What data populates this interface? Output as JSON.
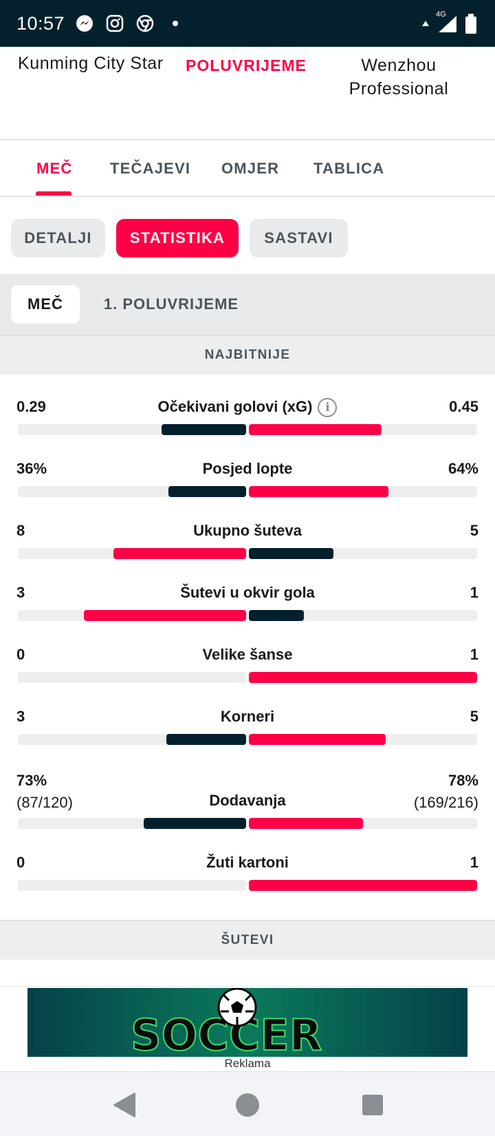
{
  "status_bar": {
    "time": "10:57",
    "network": "4G"
  },
  "match": {
    "home_team": "Kunming City Star",
    "status": "POLUVRIJEME",
    "away_team": "Wenzhou Professional"
  },
  "main_tabs": [
    {
      "label": "MEČ",
      "active": true
    },
    {
      "label": "TEČAJEVI"
    },
    {
      "label": "OMJER"
    },
    {
      "label": "TABLICA"
    }
  ],
  "sub_tabs": [
    {
      "label": "DETALJI"
    },
    {
      "label": "STATISTIKA",
      "active": true
    },
    {
      "label": "SASTAVI"
    }
  ],
  "period_tabs": [
    {
      "label": "MEČ",
      "active": true
    },
    {
      "label": "1. POLUVRIJEME"
    }
  ],
  "sections": {
    "highlights": "NAJBITNIJE",
    "shots": "ŠUTEVI"
  },
  "stats": [
    {
      "name": "Očekivani golovi (xG)",
      "home": "0.29",
      "away": "0.45",
      "home_ratio": 0.37,
      "away_ratio": 0.58,
      "home_color": "dark",
      "away_color": "red"
    },
    {
      "name": "Posjed lopte",
      "home": "36%",
      "away": "64%",
      "home_ratio": 0.34,
      "away_ratio": 0.61,
      "home_color": "dark",
      "away_color": "red"
    },
    {
      "name": "Ukupno šuteva",
      "home": "8",
      "away": "5",
      "home_ratio": 0.58,
      "away_ratio": 0.37,
      "home_color": "red",
      "away_color": "dark"
    },
    {
      "name": "Šutevi u okvir gola",
      "home": "3",
      "away": "1",
      "home_ratio": 0.71,
      "away_ratio": 0.24,
      "home_color": "red",
      "away_color": "dark"
    },
    {
      "name": "Velike šanse",
      "home": "0",
      "away": "1",
      "home_ratio": 0.0,
      "away_ratio": 1.0,
      "home_color": "dark",
      "away_color": "red"
    },
    {
      "name": "Korneri",
      "home": "3",
      "away": "5",
      "home_ratio": 0.35,
      "away_ratio": 0.6,
      "home_color": "dark",
      "away_color": "red"
    },
    {
      "name": "Dodavanja",
      "home": "73%",
      "home_sub": "(87/120)",
      "away": "78%",
      "away_sub": "(169/216)",
      "home_ratio": 0.45,
      "away_ratio": 0.5,
      "home_color": "dark",
      "away_color": "red"
    },
    {
      "name": "Žuti kartoni",
      "home": "0",
      "away": "1",
      "home_ratio": 0.0,
      "away_ratio": 1.0,
      "home_color": "dark",
      "away_color": "red"
    }
  ],
  "ad": {
    "brand": "SOCCER",
    "label": "Reklama"
  },
  "colors": {
    "accent": "#ff0046",
    "dark": "#04202c",
    "track": "#eeeeee"
  }
}
